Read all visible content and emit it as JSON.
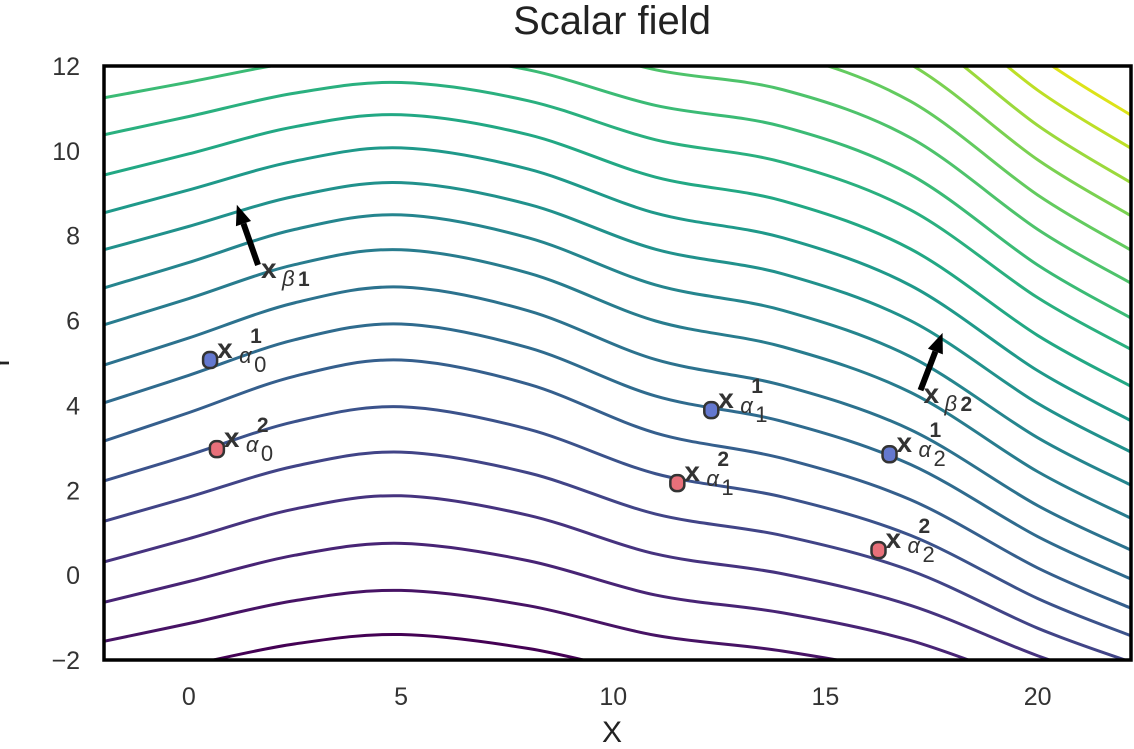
{
  "chart_data": {
    "type": "contour",
    "title": "Scalar field",
    "xlabel": "X",
    "ylabel": "Y",
    "xlim": [
      -2,
      22.2
    ],
    "ylim": [
      -2,
      12
    ],
    "xticks": [
      0,
      5,
      10,
      15,
      20
    ],
    "yticks": [
      {
        "value": -2,
        "label": "−2"
      },
      0,
      2,
      4,
      6,
      8,
      10,
      12
    ],
    "x": [
      -2,
      0,
      2.5,
      5,
      8,
      11,
      14,
      17,
      20,
      22.2
    ],
    "series": [
      {
        "color": "#440154",
        "values": [
          -2.5,
          -2.12,
          -1.62,
          -1.4,
          -1.73,
          -2.37,
          -2.71,
          -3.23,
          -4.08,
          -4.58
        ]
      },
      {
        "color": "#471365",
        "values": [
          -1.56,
          -1.14,
          -0.6,
          -0.36,
          -0.72,
          -1.42,
          -1.79,
          -2.36,
          -3.29,
          -3.84
        ]
      },
      {
        "color": "#482475",
        "values": [
          -0.64,
          -0.15,
          0.47,
          0.75,
          0.34,
          -0.47,
          -0.89,
          -1.54,
          -2.59,
          -3.21
        ]
      },
      {
        "color": "#46337f",
        "values": [
          0.31,
          0.86,
          1.56,
          1.87,
          1.41,
          0.5,
          0.03,
          -0.71,
          -1.9,
          -2.6
        ]
      },
      {
        "color": "#414487",
        "values": [
          1.27,
          1.84,
          2.57,
          2.9,
          2.41,
          1.44,
          0.93,
          0.11,
          -1.25,
          -2.05
        ]
      },
      {
        "color": "#3b528b",
        "values": [
          2.22,
          2.83,
          3.62,
          3.97,
          3.44,
          2.39,
          1.84,
          0.94,
          -0.55,
          -1.43
        ]
      },
      {
        "color": "#355f8d",
        "values": [
          3.16,
          3.83,
          4.69,
          5.07,
          4.5,
          3.35,
          2.75,
          1.78,
          0.17,
          -0.78
        ]
      },
      {
        "color": "#2f6b8e",
        "values": [
          4.06,
          4.71,
          5.55,
          5.92,
          5.36,
          4.22,
          3.62,
          2.61,
          0.91,
          -0.09
        ]
      },
      {
        "color": "#2c728e",
        "values": [
          4.95,
          5.59,
          6.42,
          6.79,
          6.23,
          5.08,
          4.47,
          3.43,
          1.64,
          0.59
        ]
      },
      {
        "color": "#287c8e",
        "values": [
          5.9,
          6.52,
          7.32,
          7.67,
          7.12,
          5.99,
          5.38,
          4.31,
          2.44,
          1.34
        ]
      },
      {
        "color": "#25858e",
        "values": [
          6.77,
          7.37,
          8.15,
          8.49,
          7.95,
          6.84,
          6.24,
          5.15,
          3.24,
          2.12
        ]
      },
      {
        "color": "#21918c",
        "values": [
          7.67,
          8.22,
          8.93,
          9.25,
          8.74,
          7.68,
          7.1,
          6.0,
          4.05,
          2.9
        ]
      },
      {
        "color": "#1f998a",
        "values": [
          8.54,
          9.08,
          9.76,
          10.07,
          9.57,
          8.53,
          7.95,
          6.83,
          4.82,
          3.64
        ]
      },
      {
        "color": "#22a884",
        "values": [
          9.43,
          9.93,
          10.57,
          10.85,
          10.38,
          9.38,
          8.82,
          7.69,
          5.65,
          4.45
        ]
      },
      {
        "color": "#2ab07f",
        "values": [
          10.38,
          10.81,
          11.36,
          11.61,
          11.18,
          10.26,
          9.73,
          8.61,
          6.54,
          5.32
        ]
      },
      {
        "color": "#3bbb75",
        "values": [
          11.25,
          11.62,
          12.09,
          12.3,
          11.91,
          11.07,
          10.57,
          9.44,
          7.31,
          6.06
        ]
      },
      {
        "color": "#4ec36b",
        "values": [
          12.15,
          12.47,
          12.87,
          13.05,
          12.7,
          11.91,
          11.44,
          10.31,
          8.15,
          6.88
        ]
      },
      {
        "color": "#63cb5f",
        "values": [
          13.05,
          13.33,
          13.69,
          13.85,
          13.52,
          12.77,
          12.31,
          11.17,
          8.96,
          7.66
        ]
      },
      {
        "color": "#7ad151",
        "values": [
          13.95,
          14.2,
          14.51,
          14.65,
          14.34,
          13.63,
          13.19,
          12.04,
          9.79,
          8.47
        ]
      },
      {
        "color": "#9bd93c",
        "values": [
          14.85,
          15.06,
          15.33,
          15.45,
          15.17,
          14.49,
          14.06,
          12.89,
          10.6,
          9.25
        ]
      },
      {
        "color": "#bddf26",
        "values": [
          15.75,
          15.93,
          16.15,
          16.25,
          15.99,
          15.35,
          14.94,
          13.76,
          11.43,
          10.06
        ]
      },
      {
        "color": "#dde318",
        "values": [
          16.65,
          16.81,
          17.01,
          17.1,
          16.85,
          16.23,
          15.81,
          14.62,
          12.24,
          10.84
        ]
      }
    ],
    "points": [
      {
        "x": 0.5,
        "y": 5.07,
        "color": "#6478cf",
        "label": {
          "base": "x",
          "sub": "α",
          "index": "0",
          "sup": "1"
        }
      },
      {
        "x": 12.31,
        "y": 3.89,
        "color": "#6478cf",
        "label": {
          "base": "x",
          "sub": "α",
          "index": "1",
          "sup": "1"
        }
      },
      {
        "x": 16.51,
        "y": 2.85,
        "color": "#6478cf",
        "label": {
          "base": "x",
          "sub": "α",
          "index": "2",
          "sup": "1"
        }
      },
      {
        "x": 0.66,
        "y": 2.97,
        "color": "#e8707a",
        "label": {
          "base": "x",
          "sub": "α",
          "index": "0",
          "sup": "2"
        }
      },
      {
        "x": 11.51,
        "y": 2.17,
        "color": "#e8707a",
        "label": {
          "base": "x",
          "sub": "α",
          "index": "1",
          "sup": "2"
        }
      },
      {
        "x": 16.25,
        "y": 0.59,
        "color": "#e8707a",
        "label": {
          "base": "x",
          "sub": "α",
          "index": "2",
          "sup": "2"
        }
      }
    ],
    "arrows": [
      {
        "x": 1.63,
        "y": 7.31,
        "dx": -0.5,
        "dy": 1.42,
        "color": "#000000",
        "label": {
          "base": "x",
          "sub": "β",
          "index": "1"
        }
      },
      {
        "x": 17.24,
        "y": 4.36,
        "dx": 0.52,
        "dy": 1.35,
        "color": "#000000",
        "label": {
          "base": "x",
          "sub": "β",
          "index": "2"
        }
      }
    ]
  }
}
